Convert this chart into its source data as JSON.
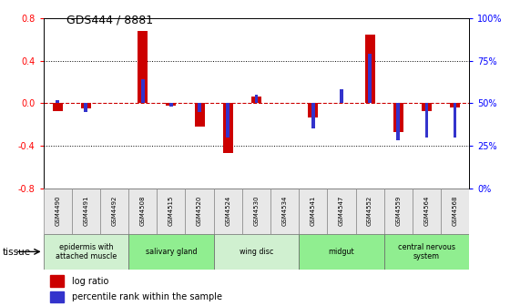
{
  "title": "GDS444 / 8881",
  "samples": [
    "GSM4490",
    "GSM4491",
    "GSM4492",
    "GSM4508",
    "GSM4515",
    "GSM4520",
    "GSM4524",
    "GSM4530",
    "GSM4534",
    "GSM4541",
    "GSM4547",
    "GSM4552",
    "GSM4559",
    "GSM4564",
    "GSM4568"
  ],
  "log_ratio": [
    -0.07,
    -0.05,
    0.0,
    0.68,
    -0.02,
    -0.22,
    -0.47,
    0.06,
    0.0,
    -0.13,
    0.0,
    0.65,
    -0.27,
    -0.07,
    -0.04
  ],
  "percentile": [
    52,
    45,
    50,
    64,
    48,
    45,
    30,
    55,
    50,
    35,
    58,
    79,
    28,
    30,
    30
  ],
  "tissues": [
    {
      "label": "epidermis with\nattached muscle",
      "start": 0,
      "end": 3,
      "color": "#d0f0d0"
    },
    {
      "label": "salivary gland",
      "start": 3,
      "end": 6,
      "color": "#90ee90"
    },
    {
      "label": "wing disc",
      "start": 6,
      "end": 9,
      "color": "#d0f0d0"
    },
    {
      "label": "midgut",
      "start": 9,
      "end": 12,
      "color": "#90ee90"
    },
    {
      "label": "central nervous\nsystem",
      "start": 12,
      "end": 15,
      "color": "#90ee90"
    }
  ],
  "ylim": [
    -0.8,
    0.8
  ],
  "yticks_left": [
    -0.8,
    -0.4,
    0.0,
    0.4,
    0.8
  ],
  "yticks_right": [
    0,
    25,
    50,
    75,
    100
  ],
  "bar_color_red": "#cc0000",
  "bar_color_blue": "#3333cc",
  "bar_width": 0.35,
  "blue_bar_width": 0.12,
  "bg_color": "#ffffff"
}
